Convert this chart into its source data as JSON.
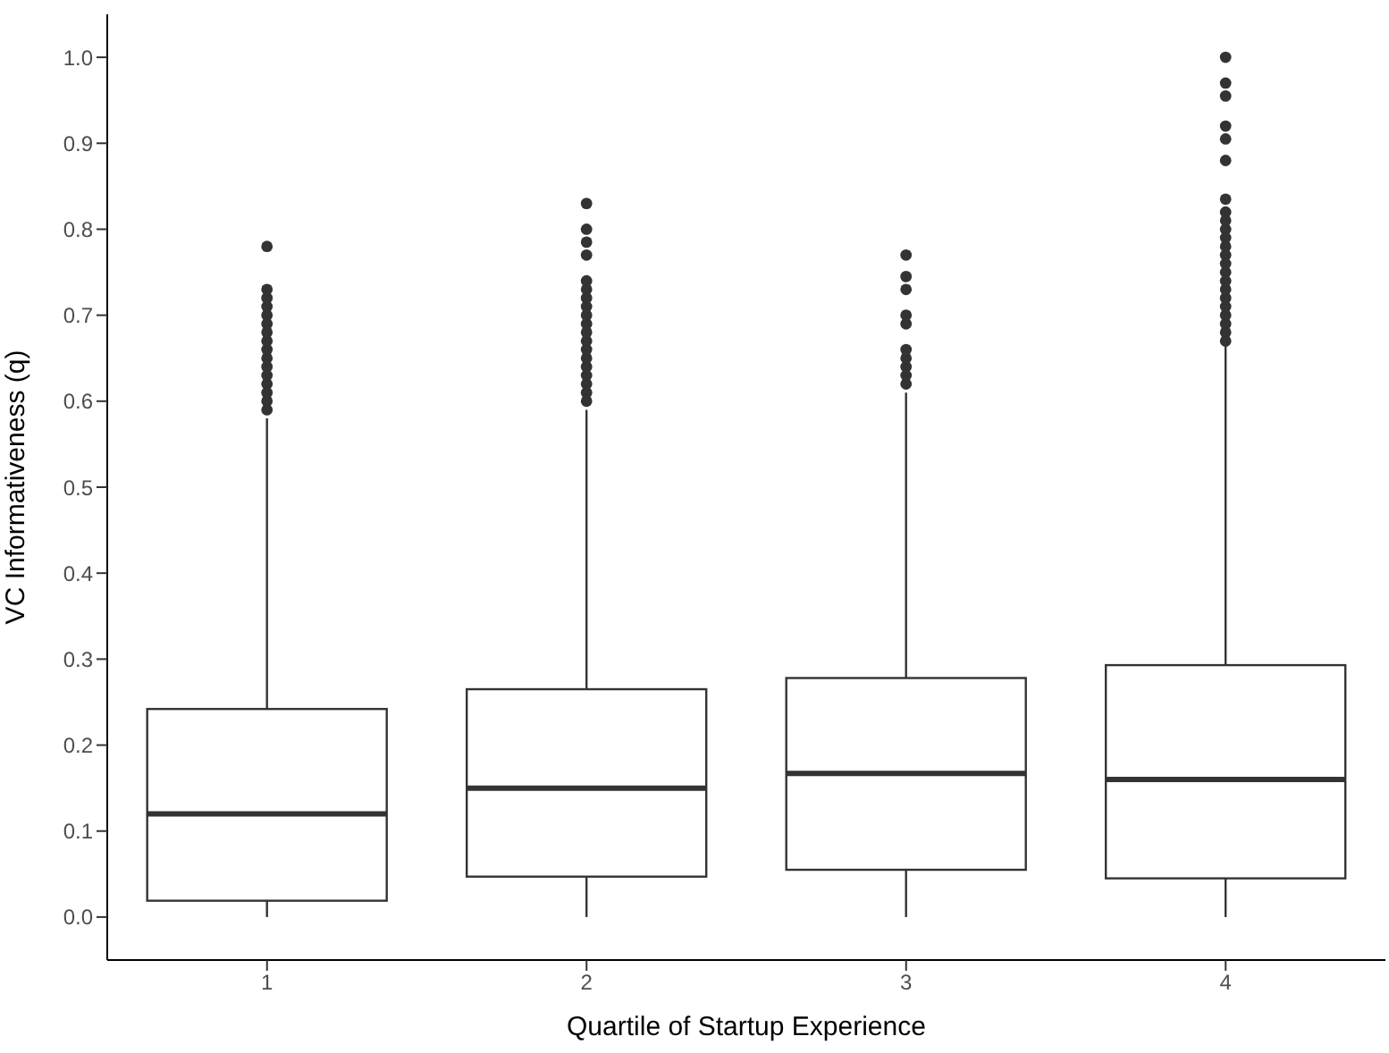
{
  "chart_data": {
    "type": "box",
    "xlabel": "Quartile of Startup Experience",
    "ylabel": "VC Informativeness (q)",
    "categories": [
      "1",
      "2",
      "3",
      "4"
    ],
    "color": "#333333",
    "ylim": [
      -0.05,
      1.05
    ],
    "yticks": [
      {
        "value": 0,
        "label": "0.0"
      },
      0.1,
      0.2,
      0.3,
      0.4,
      0.5,
      0.6,
      0.7,
      0.8,
      0.9,
      {
        "value": 1,
        "label": "1.0"
      }
    ],
    "boxes": [
      {
        "low": 0,
        "q1": 0.019,
        "median": 0.12,
        "q3": 0.242,
        "high": 0.58,
        "outliers": [
          0.59,
          0.6,
          0.61,
          0.62,
          0.63,
          0.64,
          0.65,
          0.66,
          0.67,
          0.68,
          0.69,
          0.7,
          0.71,
          0.72,
          0.73,
          0.78
        ]
      },
      {
        "low": 0,
        "q1": 0.047,
        "median": 0.15,
        "q3": 0.265,
        "high": 0.59,
        "outliers": [
          0.6,
          0.61,
          0.62,
          0.63,
          0.64,
          0.65,
          0.66,
          0.67,
          0.68,
          0.69,
          0.7,
          0.71,
          0.72,
          0.73,
          0.74,
          0.77,
          0.785,
          0.8,
          0.83
        ]
      },
      {
        "low": 0,
        "q1": 0.055,
        "median": 0.167,
        "q3": 0.278,
        "high": 0.61,
        "outliers": [
          0.62,
          0.63,
          0.64,
          0.65,
          0.66,
          0.69,
          0.7,
          0.73,
          0.745,
          0.77
        ]
      },
      {
        "low": 0,
        "q1": 0.045,
        "median": 0.16,
        "q3": 0.293,
        "high": 0.665,
        "outliers": [
          0.67,
          0.68,
          0.69,
          0.7,
          0.71,
          0.72,
          0.73,
          0.74,
          0.75,
          0.76,
          0.77,
          0.78,
          0.79,
          0.8,
          0.81,
          0.82,
          0.835,
          0.88,
          0.905,
          0.92,
          0.955,
          0.97,
          1.0
        ]
      }
    ]
  }
}
